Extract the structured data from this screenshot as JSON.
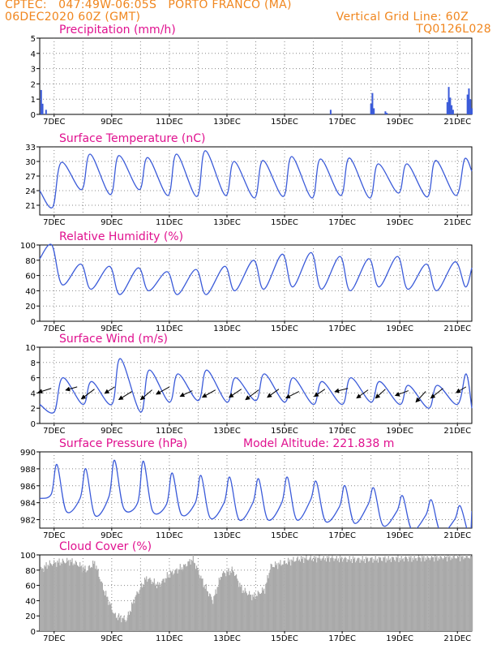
{
  "header": {
    "line1_left": "CPTEC:   047:49W-06:05S   PORTO FRANCO (MA)",
    "line2_left": "06DEC2020 60Z (GMT)",
    "line2_right": "Vertical Grid Line: 60Z",
    "line3_right": "TQ0126L028"
  },
  "colors": {
    "header": "#f0861e",
    "title": "#e0118f",
    "line": "#3b5bd9",
    "cloud": "#a9a9a9",
    "wind_arrow": "#000000"
  },
  "x_axis": {
    "labels": [
      "7DEC",
      "9DEC",
      "11DEC",
      "13DEC",
      "15DEC",
      "17DEC",
      "19DEC",
      "21DEC"
    ],
    "range_days": [
      0,
      15
    ]
  },
  "chart_data": [
    {
      "id": "precip",
      "type": "bar",
      "title": "Precipitation (mm/h)",
      "ylim": [
        0,
        5
      ],
      "yticks": [
        0,
        1,
        2,
        3,
        4,
        5
      ],
      "x": [
        0.05,
        0.1,
        0.22,
        10.1,
        11.5,
        11.55,
        11.6,
        12.0,
        12.05,
        14.15,
        14.2,
        14.25,
        14.3,
        14.35,
        14.85,
        14.9,
        14.95,
        15.0
      ],
      "values": [
        1.6,
        0.7,
        0.3,
        0.3,
        0.7,
        1.4,
        0.4,
        0.2,
        0.1,
        0.8,
        1.8,
        1.1,
        0.6,
        0.3,
        1.3,
        1.7,
        1.0,
        0.4
      ]
    },
    {
      "id": "temp",
      "type": "line",
      "title": "Surface Temperature (nC)",
      "ylim": [
        19,
        33
      ],
      "yticks": [
        21,
        24,
        27,
        30,
        33
      ],
      "daily_max": [
        29.8,
        31.5,
        31.2,
        30.8,
        31.5,
        32.2,
        30.0,
        30.2,
        31.0,
        30.5,
        30.7,
        29.5,
        29.5,
        30.2,
        30.5
      ],
      "daily_min": [
        20.6,
        24.2,
        23.2,
        24.2,
        23.0,
        22.8,
        23.0,
        22.5,
        22.8,
        22.5,
        23.0,
        22.5,
        23.5,
        22.7,
        23.0
      ]
    },
    {
      "id": "rh",
      "type": "line",
      "title": "Relative Humidity (%)",
      "ylim": [
        0,
        100
      ],
      "yticks": [
        0,
        20,
        40,
        60,
        80,
        100
      ],
      "daily_max": [
        100,
        75,
        72,
        70,
        65,
        68,
        72,
        80,
        88,
        90,
        85,
        82,
        85,
        75,
        78
      ],
      "daily_min": [
        48,
        42,
        35,
        40,
        35,
        35,
        40,
        42,
        45,
        42,
        40,
        45,
        42,
        40,
        45
      ]
    },
    {
      "id": "wind",
      "type": "line",
      "title": "Surface Wind (m/s)",
      "ylim": [
        0,
        10
      ],
      "yticks": [
        0,
        2,
        4,
        6,
        8,
        10
      ],
      "daily_max": [
        6.0,
        5.5,
        8.5,
        7.0,
        6.5,
        7.0,
        6.0,
        6.5,
        6.0,
        5.5,
        6.0,
        5.5,
        5.0,
        5.0,
        6.5
      ],
      "daily_min": [
        1.5,
        2.5,
        2.5,
        1.5,
        2.8,
        3.0,
        2.8,
        3.0,
        2.8,
        2.5,
        2.5,
        2.8,
        2.5,
        2.0,
        2.5
      ],
      "arrows": [
        {
          "x": 0.4,
          "y": 4.6,
          "dx": -16,
          "dy": 5
        },
        {
          "x": 1.3,
          "y": 4.8,
          "dx": -14,
          "dy": 4
        },
        {
          "x": 1.9,
          "y": 4.5,
          "dx": -16,
          "dy": 12
        },
        {
          "x": 2.6,
          "y": 4.8,
          "dx": -12,
          "dy": 8
        },
        {
          "x": 3.2,
          "y": 4.2,
          "dx": -16,
          "dy": 10
        },
        {
          "x": 3.9,
          "y": 4.4,
          "dx": -14,
          "dy": 12
        },
        {
          "x": 4.5,
          "y": 4.8,
          "dx": -16,
          "dy": 9
        },
        {
          "x": 5.3,
          "y": 4.3,
          "dx": -15,
          "dy": 7
        },
        {
          "x": 6.1,
          "y": 4.4,
          "dx": -16,
          "dy": 9
        },
        {
          "x": 7.0,
          "y": 4.5,
          "dx": -15,
          "dy": 10
        },
        {
          "x": 7.6,
          "y": 4.4,
          "dx": -16,
          "dy": 12
        },
        {
          "x": 8.3,
          "y": 4.5,
          "dx": -14,
          "dy": 10
        },
        {
          "x": 9.0,
          "y": 4.2,
          "dx": -16,
          "dy": 8
        },
        {
          "x": 9.9,
          "y": 4.5,
          "dx": -13,
          "dy": 9
        },
        {
          "x": 10.7,
          "y": 4.6,
          "dx": -16,
          "dy": 4
        },
        {
          "x": 11.4,
          "y": 4.4,
          "dx": -14,
          "dy": 10
        },
        {
          "x": 12.0,
          "y": 4.5,
          "dx": -12,
          "dy": 11
        },
        {
          "x": 12.8,
          "y": 4.3,
          "dx": -16,
          "dy": 6
        },
        {
          "x": 13.4,
          "y": 4.2,
          "dx": -12,
          "dy": 13
        },
        {
          "x": 14.0,
          "y": 4.6,
          "dx": -15,
          "dy": 12
        },
        {
          "x": 14.8,
          "y": 4.8,
          "dx": -12,
          "dy": 7
        }
      ]
    },
    {
      "id": "pressure",
      "type": "line",
      "title": "Surface Pressure (hPa)",
      "annotation": "Model Altitude: 221.838 m",
      "ylim": [
        981,
        990
      ],
      "yticks": [
        982,
        984,
        986,
        988,
        990
      ],
      "daily_max": [
        988.5,
        988.0,
        989.0,
        988.9,
        987.5,
        987.2,
        987.0,
        986.8,
        987.0,
        986.5,
        986.0,
        985.7,
        984.8,
        984.3,
        983.6
      ],
      "daily_min": [
        985.0,
        984.5,
        984.7,
        984.0,
        983.8,
        984.0,
        984.0,
        984.0,
        984.0,
        984.3,
        983.5,
        983.8,
        983.0,
        982.5,
        982.0
      ],
      "daily_secmin": [
        983.0,
        982.5,
        983.3,
        983.0,
        982.6,
        982.2,
        982.0,
        982.0,
        982.0,
        981.8,
        981.6,
        981.3,
        980.8,
        980.5,
        980.0
      ]
    },
    {
      "id": "cloud",
      "type": "area",
      "title": "Cloud Cover (%)",
      "ylim": [
        0,
        100
      ],
      "yticks": [
        0,
        20,
        40,
        60,
        80,
        100
      ],
      "x": [
        0,
        0.3,
        0.6,
        1.0,
        1.3,
        1.6,
        1.9,
        2.2,
        2.6,
        3.0,
        3.3,
        3.7,
        4.1,
        4.5,
        5.0,
        5.3,
        5.7,
        6.0,
        6.3,
        6.7,
        7.0,
        7.4,
        7.8,
        8.0,
        8.5,
        9.0,
        10.0,
        11.0,
        12.0,
        13.0,
        14.0,
        15.0
      ],
      "values": [
        80,
        88,
        90,
        92,
        88,
        80,
        90,
        55,
        20,
        15,
        45,
        70,
        60,
        75,
        85,
        95,
        60,
        40,
        75,
        80,
        55,
        45,
        55,
        85,
        90,
        95,
        96,
        94,
        95,
        96,
        97,
        98
      ]
    }
  ]
}
